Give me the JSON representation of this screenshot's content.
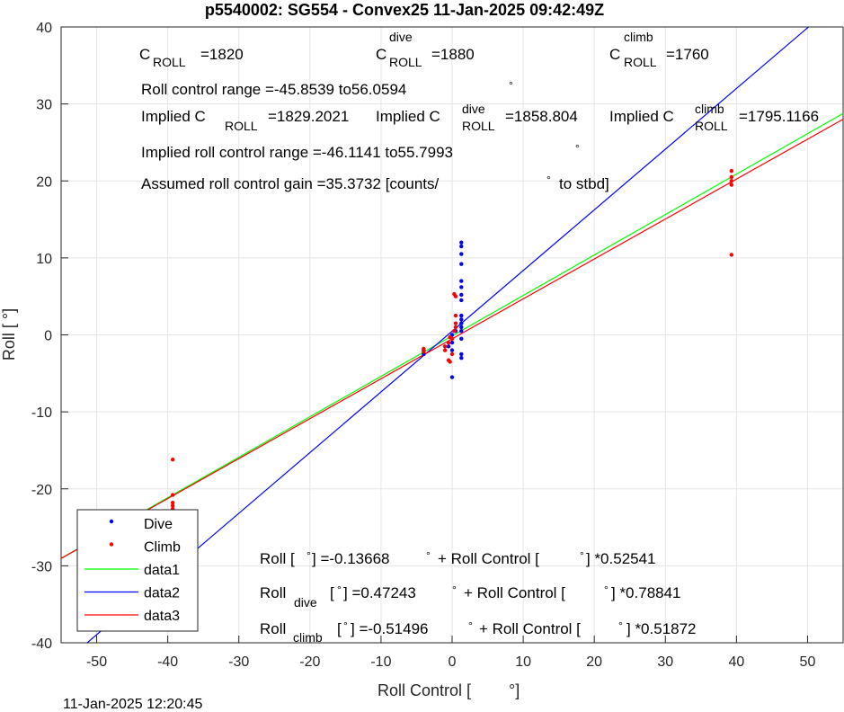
{
  "chart_data": {
    "type": "scatter",
    "title": "p5540002: SG554 - Convex25 11-Jan-2025 09:42:49Z",
    "footer": "11-Jan-2025 12:20:45",
    "xlabel": [
      "Roll Control [",
      "°]"
    ],
    "ylabel": "Roll [ °]",
    "xlim": [
      -55,
      55
    ],
    "ylim": [
      -40,
      40
    ],
    "xticks": [
      -50,
      -40,
      -30,
      -20,
      -10,
      0,
      10,
      20,
      30,
      40,
      50
    ],
    "yticks": [
      -40,
      -30,
      -20,
      -10,
      0,
      10,
      20,
      30,
      40
    ],
    "grid": true,
    "legend": "lower-left",
    "series": [
      {
        "name": "Dive",
        "type": "scatter",
        "color": "#0000ff",
        "x": [
          1.3,
          1.3,
          1.3,
          1.3,
          1.3,
          1.3,
          1.3,
          1.3,
          1.3,
          1.3,
          1.3,
          1.3,
          1.3,
          1.3,
          1.3,
          1.3,
          0,
          0,
          0,
          0,
          -0.5,
          -4,
          -4,
          0.5
        ],
        "values": [
          12,
          11.5,
          10.5,
          9.2,
          7,
          6.2,
          5.2,
          4.5,
          2.5,
          2,
          1.5,
          1,
          0.5,
          -0.5,
          -2.5,
          -3,
          -5.5,
          -2,
          -1,
          0,
          -1.5,
          -2.5,
          -2,
          0.5
        ]
      },
      {
        "name": "Climb",
        "type": "scatter",
        "color": "#ff0000",
        "x": [
          -39.3,
          -39.3,
          -39.3,
          -39.3,
          -39.3,
          39.3,
          39.3,
          39.3,
          39.3,
          39.3,
          0.3,
          0.5,
          0.5,
          0.5,
          0.5,
          0,
          -0.5,
          -1,
          -1,
          -0.3,
          -0.5,
          0,
          -4,
          -4,
          0.3,
          -0.3
        ],
        "values": [
          -16.2,
          -20.8,
          -21.8,
          -22.2,
          -22.6,
          21.3,
          20.5,
          20,
          19.5,
          10.4,
          5.3,
          5,
          2.5,
          1.5,
          1,
          -0.5,
          -1,
          -1.5,
          -2,
          -3.5,
          -3.3,
          -2.5,
          -1.8,
          -2.2,
          0.5,
          -0.3
        ]
      },
      {
        "name": "data1",
        "type": "line",
        "color": "#00ff00",
        "x": [
          -55,
          55
        ],
        "values": [
          -29.034,
          28.761
        ]
      },
      {
        "name": "data2",
        "type": "line",
        "color": "#0000ff",
        "x": [
          -55,
          55
        ],
        "values": [
          -42.89,
          43.835
        ]
      },
      {
        "name": "data3",
        "type": "line",
        "color": "#ff0000",
        "x": [
          -55,
          55
        ],
        "values": [
          -29.045,
          28.015
        ]
      }
    ],
    "annotations": [
      [
        "C",
        "ROLL",
        "=1820"
      ],
      [
        "C",
        "dive",
        "ROLL",
        "=1880"
      ],
      [
        "C",
        "climb",
        "ROLL",
        "=1760"
      ],
      [
        "Roll control range =-45.8539 to56.0594",
        "°"
      ],
      [
        "Implied C",
        "ROLL",
        "=1829.2021"
      ],
      [
        "Implied C",
        "dive",
        "ROLL",
        "=1858.804"
      ],
      [
        "Implied C",
        "climb",
        "ROLL",
        "=1795.1166"
      ],
      [
        "Implied roll control range =-46.1141 to55.7993",
        "°"
      ],
      [
        "Assumed roll control gain =35.3732 [counts/",
        "°",
        "to stbd]"
      ],
      [
        "Roll [",
        "°",
        "] =-0.13668",
        "°",
        "+ Roll Control [",
        "°",
        "] *0.52541"
      ],
      [
        "Roll",
        "dive",
        "[",
        "°",
        "] =0.47243",
        "°",
        "+ Roll Control [",
        "°",
        "] *0.78841"
      ],
      [
        "Roll",
        "climb",
        "[",
        "°",
        "] =-0.51496",
        "°",
        "+ Roll Control [",
        "°",
        "] *0.51872"
      ]
    ]
  }
}
